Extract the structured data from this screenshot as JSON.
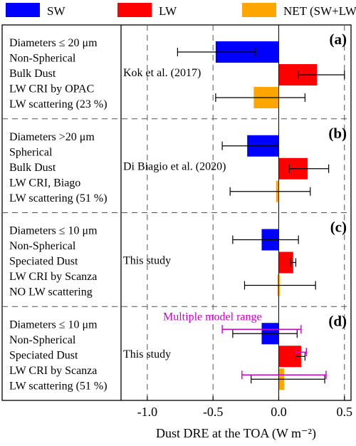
{
  "chart_data": {
    "type": "bar",
    "orientation": "horizontal",
    "xlabel": "Dust DRE at the TOA (W m⁻²)",
    "xlim": [
      -1.2,
      0.55
    ],
    "xticks": [
      "-1.0",
      "-0.5",
      "0.0",
      "0.5"
    ],
    "xtick_values": [
      -1.0,
      -0.5,
      0.0,
      0.5
    ],
    "legend": {
      "placement": "top",
      "entries": [
        {
          "label": "SW",
          "color": "#0000ff"
        },
        {
          "label": "LW",
          "color": "#ff0000"
        },
        {
          "label": "NET (SW+LW)",
          "color": "#ffa500"
        }
      ]
    },
    "series": [
      {
        "name": "SW",
        "color": "#0000ff"
      },
      {
        "name": "LW",
        "color": "#ff0000"
      },
      {
        "name": "NET (SW+LW)",
        "color": "#ffa500"
      }
    ],
    "panels": [
      {
        "tag": "(a)",
        "label": "Kok et al. (2017)",
        "descriptors": [
          "Diameters ≤ 20 μm",
          "Non-Spherical",
          "Bulk Dust",
          "LW CRI by OPAC",
          "LW scattering (23 %)"
        ],
        "bars": [
          {
            "series": "SW",
            "value": -0.48,
            "err_low": -0.77,
            "err_high": -0.18
          },
          {
            "series": "LW",
            "value": 0.29,
            "err_low": 0.15,
            "err_high": 0.5
          },
          {
            "series": "NET (SW+LW)",
            "value": -0.19,
            "err_low": -0.48,
            "err_high": 0.2
          }
        ],
        "model_range": []
      },
      {
        "tag": "(b)",
        "label": "Di Biagio et al. (2020)",
        "descriptors": [
          "Diameters >20 μm",
          "Spherical",
          "Bulk Dust",
          "LW CRI, Biago",
          "LW scattering (51 %)"
        ],
        "bars": [
          {
            "series": "SW",
            "value": -0.24,
            "err_low": -0.43,
            "err_high": -0.01
          },
          {
            "series": "LW",
            "value": 0.22,
            "err_low": 0.08,
            "err_high": 0.38
          },
          {
            "series": "NET (SW+LW)",
            "value": -0.02,
            "err_low": -0.37,
            "err_high": 0.24
          }
        ],
        "model_range": []
      },
      {
        "tag": "(c)",
        "label": "This study",
        "descriptors": [
          "Diameters ≤ 10 μm",
          "Non-Spherical",
          "Speciated Dust",
          "LW CRI by Scanza",
          "NO LW scattering"
        ],
        "bars": [
          {
            "series": "SW",
            "value": -0.13,
            "err_low": -0.35,
            "err_high": 0.15
          },
          {
            "series": "LW",
            "value": 0.11,
            "err_low": 0.09,
            "err_high": 0.13
          },
          {
            "series": "NET (SW+LW)",
            "value": -0.01,
            "err_low": -0.26,
            "err_high": 0.28
          }
        ],
        "model_range": []
      },
      {
        "tag": "(d)",
        "label": "This study",
        "descriptors": [
          "Diameters ≤ 10 μm",
          "Non-Spherical",
          "Speciated Dust",
          "LW CRI by Scanza",
          "LW scattering (51 %)"
        ],
        "bars": [
          {
            "series": "SW",
            "value": -0.13,
            "err_low": -0.35,
            "err_high": 0.14
          },
          {
            "series": "LW",
            "value": 0.17,
            "err_low": 0.13,
            "err_high": 0.2
          },
          {
            "series": "NET (SW+LW)",
            "value": 0.04,
            "err_low": -0.21,
            "err_high": 0.35
          }
        ],
        "model_range": [
          {
            "series": "SW",
            "low": -0.43,
            "high": 0.17
          },
          {
            "series": "LW",
            "low": 0.13,
            "high": 0.21
          },
          {
            "series": "NET (SW+LW)",
            "low": -0.28,
            "high": 0.36
          }
        ]
      }
    ],
    "annotations": [
      {
        "text": "Multiple model range",
        "color": "#cc00cc",
        "panel": "(d)"
      }
    ],
    "grid": "dashed vertical lines at x ticks; dashed horizontal panel separators",
    "errorbar_color": "#000000",
    "model_range_color": "#cc00cc"
  }
}
